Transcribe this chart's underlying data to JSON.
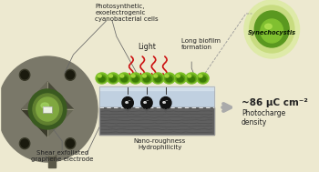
{
  "bg_color": "#ede9d0",
  "labels": {
    "top_left": "Photosynthetic,\nexoelectrogenic\ncyanobacterial cells",
    "bottom_left": "Shear exfoliated\ngraphene electrode",
    "light": "Light",
    "biofilm": "Long biofilm\nformation",
    "nano": "Nano-roughness\nHydrophilicity",
    "result_main": "~86 μC cm⁻²",
    "result_sub": "Photocharge\ndensity",
    "synechocystis": "Synechocystis"
  },
  "electrode_body": "#7a7869",
  "electrode_dark": "#4a4a3a",
  "electrode_raise": "#6a6858",
  "electrode_shadow": "#3a3a2a",
  "cell_outer": "#7abf25",
  "cell_mid": "#5a9a15",
  "cell_inner": "#3a7a05",
  "cell_highlight": "#b0e040",
  "film_blue": "#c0d0e0",
  "film_blue2": "#d8e4ee",
  "film_dark": "#606060",
  "film_darker": "#484848",
  "electron_color": "#111111",
  "arrow_red": "#cc1111",
  "synecho_outer": "#deeaa8",
  "synecho_ring": "#c8dc80",
  "synecho_cell": "#5a9820",
  "synecho_inner": "#80c030",
  "text_color": "#222222",
  "line_color": "#666666",
  "result_arrow": "#aaaaaa"
}
